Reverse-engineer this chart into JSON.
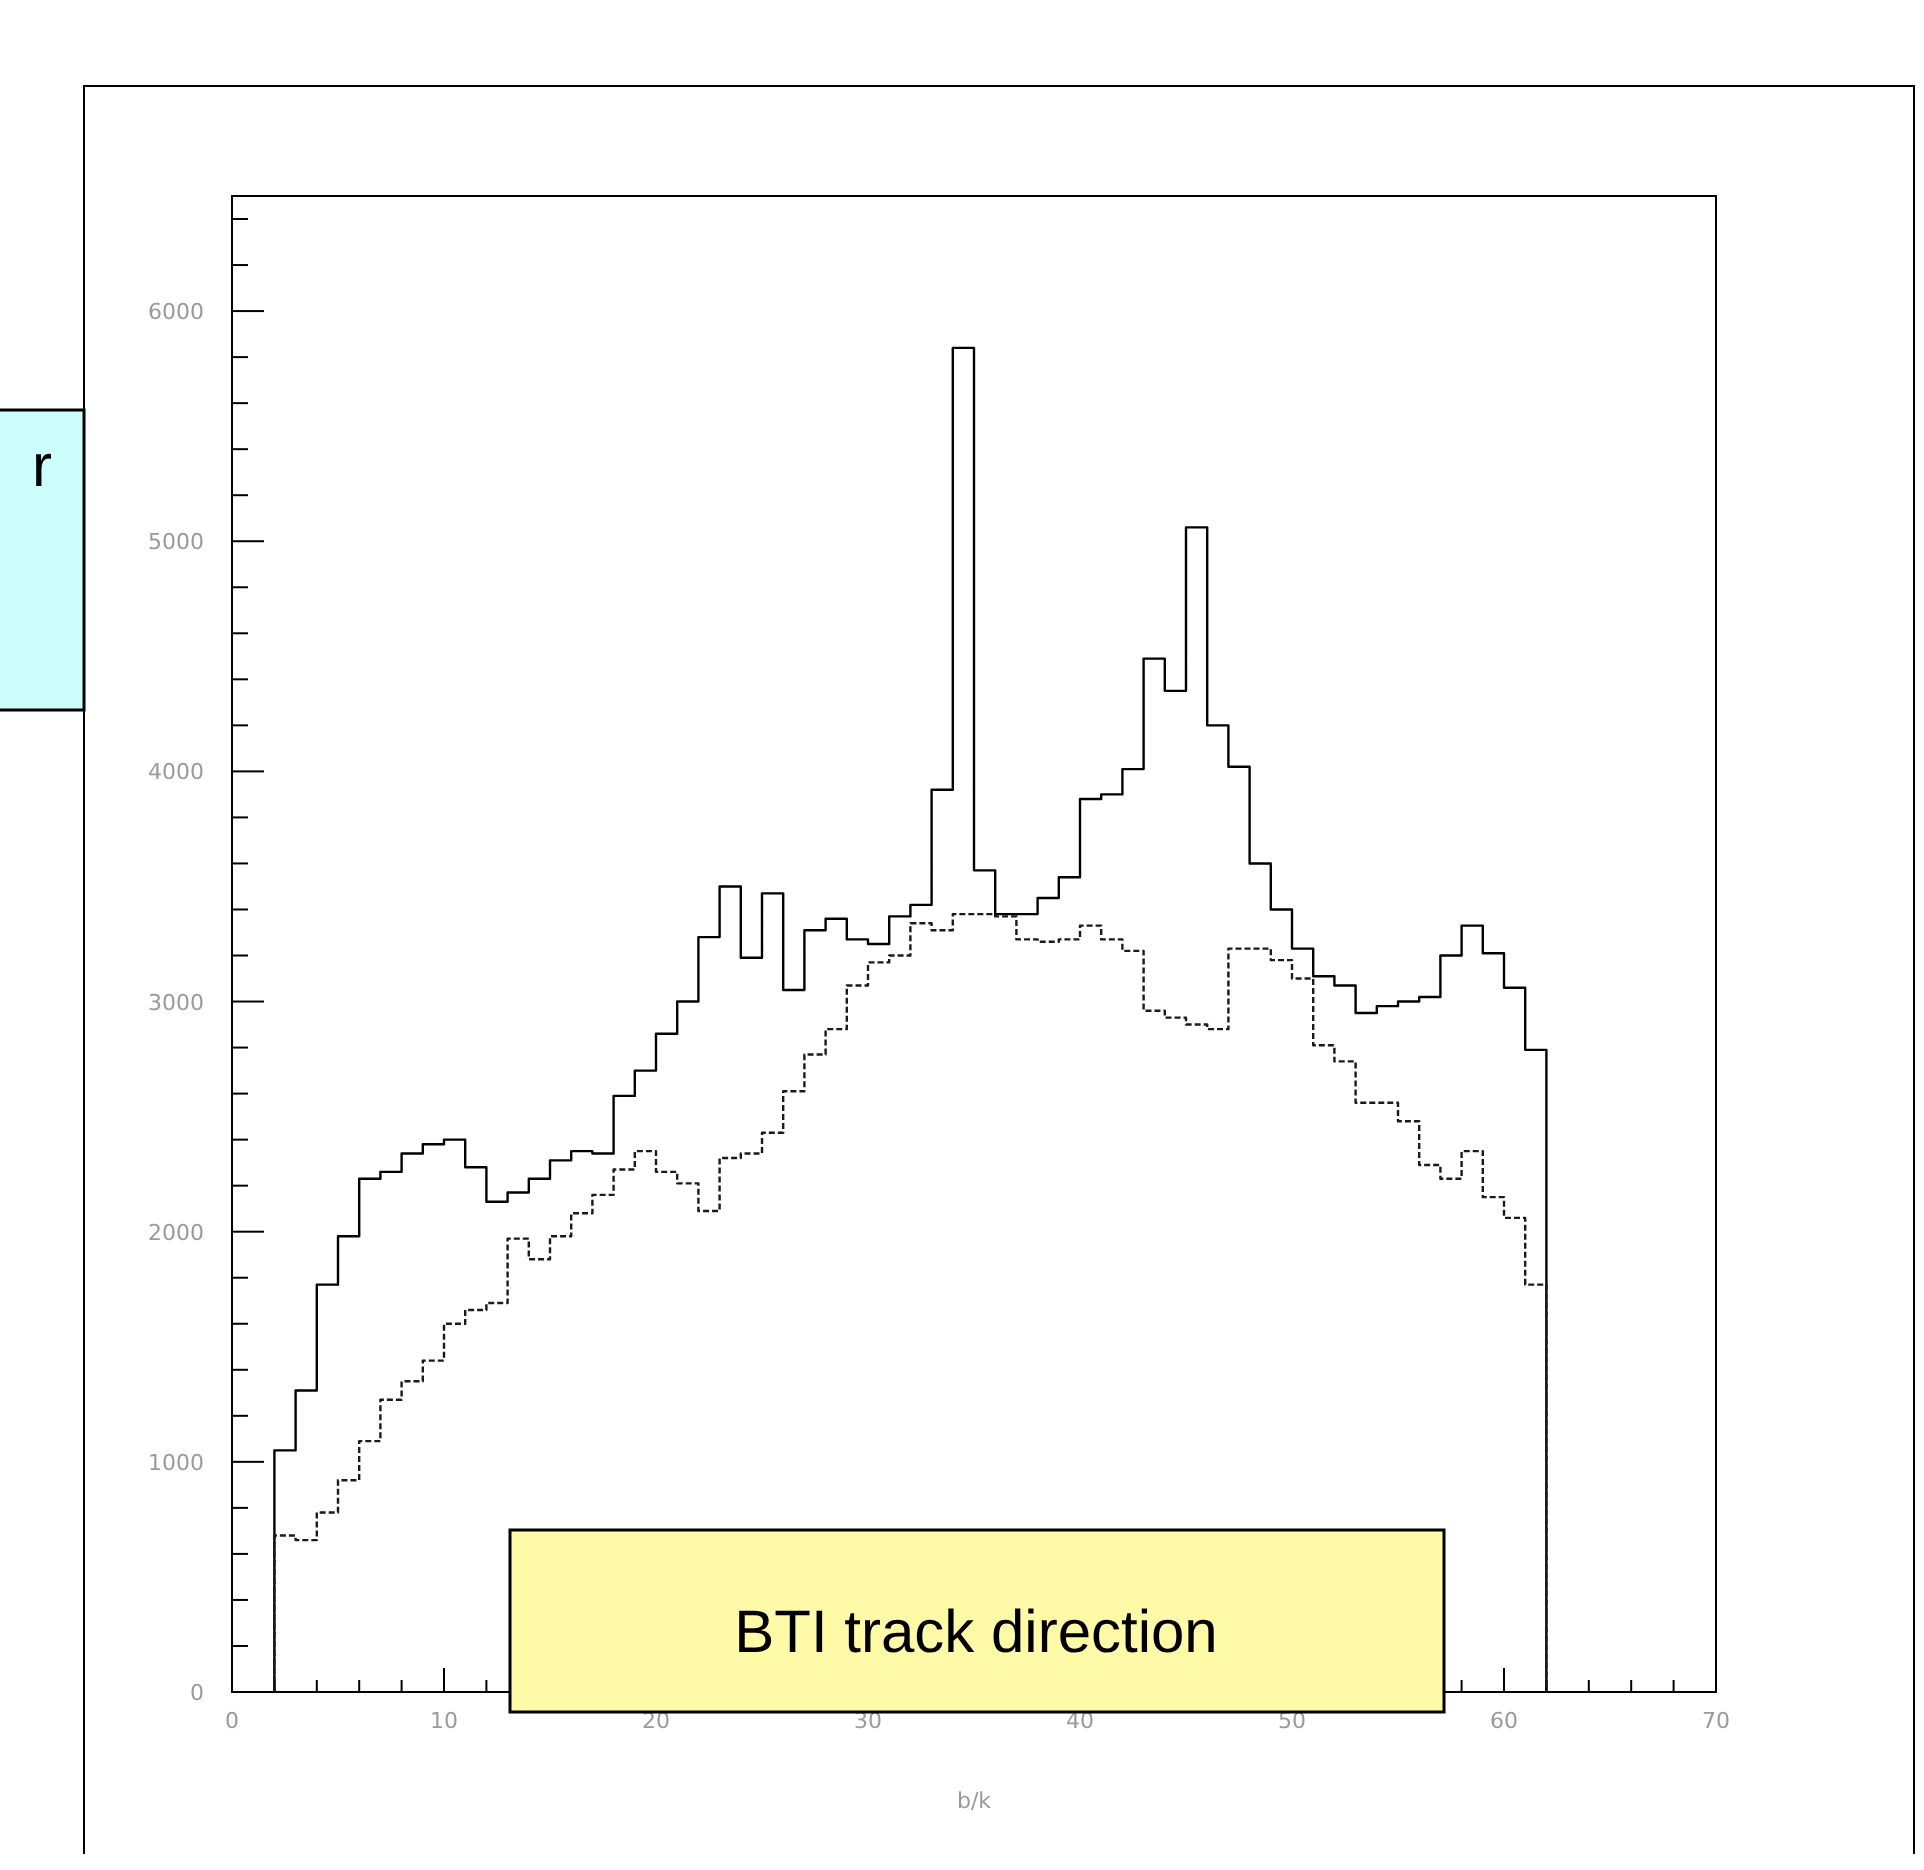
{
  "chart_data": {
    "type": "histogram",
    "xlabel": "b/k",
    "bins": [
      2,
      3,
      4,
      5,
      6,
      7,
      8,
      9,
      10,
      11,
      12,
      13,
      14,
      15,
      16,
      17,
      18,
      19,
      20,
      21,
      22,
      23,
      24,
      25,
      26,
      27,
      28,
      29,
      30,
      31,
      32,
      33,
      34,
      35,
      36,
      37,
      38,
      39,
      40,
      41,
      42,
      43,
      44,
      45,
      46,
      47,
      48,
      49,
      50,
      51,
      52,
      53,
      54,
      55,
      56,
      57,
      58,
      59,
      60,
      61,
      62
    ],
    "series": [
      {
        "color": "#000000",
        "line_style": "solid",
        "values": [
          1050,
          1310,
          1770,
          1980,
          2230,
          2260,
          2340,
          2380,
          2400,
          2280,
          2130,
          2170,
          2230,
          2310,
          2350,
          2340,
          2590,
          2700,
          2860,
          3000,
          3280,
          3500,
          3190,
          3470,
          3050,
          3310,
          3360,
          3270,
          3250,
          3370,
          3420,
          3920,
          5840,
          3570,
          3380,
          3380,
          3450,
          3540,
          3880,
          3900,
          4010,
          4490,
          4350,
          5060,
          4200,
          4020,
          3600,
          3400,
          3230,
          3110,
          3070,
          2950,
          2980,
          3000,
          3020,
          3200,
          3330,
          3210,
          3060,
          2790
        ]
      },
      {
        "color": "#1a1a1a",
        "line_style": "dashed",
        "values": [
          680,
          660,
          780,
          920,
          1090,
          1270,
          1350,
          1440,
          1600,
          1660,
          1690,
          1970,
          1880,
          1980,
          2080,
          2160,
          2270,
          2350,
          2260,
          2210,
          2090,
          2320,
          2340,
          2430,
          2610,
          2770,
          2880,
          3070,
          3170,
          3200,
          3340,
          3310,
          3380,
          3380,
          3370,
          3270,
          3260,
          3270,
          3330,
          3270,
          3220,
          2960,
          2930,
          2900,
          2880,
          3230,
          3230,
          3180,
          3100,
          2810,
          2740,
          2560,
          2560,
          2480,
          2290,
          2230,
          2350,
          2150,
          2060,
          1770
        ]
      }
    ],
    "xlim": [
      0,
      70
    ],
    "xticks": [
      0,
      {
        "value": 2,
        "label": null
      },
      {
        "value": 4,
        "label": null
      },
      {
        "value": 6,
        "label": null
      },
      {
        "value": 8,
        "label": null
      },
      10,
      {
        "value": 12,
        "label": null
      },
      {
        "value": 14,
        "label": null
      },
      {
        "value": 16,
        "label": null
      },
      {
        "value": 18,
        "label": null
      },
      20,
      {
        "value": 22,
        "label": null
      },
      {
        "value": 24,
        "label": null
      },
      {
        "value": 26,
        "label": null
      },
      {
        "value": 28,
        "label": null
      },
      30,
      {
        "value": 32,
        "label": null
      },
      {
        "value": 34,
        "label": null
      },
      {
        "value": 36,
        "label": null
      },
      {
        "value": 38,
        "label": null
      },
      40,
      {
        "value": 42,
        "label": null
      },
      {
        "value": 44,
        "label": null
      },
      {
        "value": 46,
        "label": null
      },
      {
        "value": 48,
        "label": null
      },
      50,
      {
        "value": 52,
        "label": null
      },
      {
        "value": 54,
        "label": null
      },
      {
        "value": 56,
        "label": null
      },
      {
        "value": 58,
        "label": null
      },
      60,
      {
        "value": 62,
        "label": null
      },
      {
        "value": 64,
        "label": null
      },
      {
        "value": 66,
        "label": null
      },
      {
        "value": 68,
        "label": null
      },
      70
    ],
    "ylim": [
      0,
      6500
    ],
    "yticks": [
      0,
      {
        "value": 200,
        "label": null
      },
      {
        "value": 400,
        "label": null
      },
      {
        "value": 600,
        "label": null
      },
      {
        "value": 800,
        "label": null
      },
      1000,
      {
        "value": 1200,
        "label": null
      },
      {
        "value": 1400,
        "label": null
      },
      {
        "value": 1600,
        "label": null
      },
      {
        "value": 1800,
        "label": null
      },
      2000,
      {
        "value": 2200,
        "label": null
      },
      {
        "value": 2400,
        "label": null
      },
      {
        "value": 2600,
        "label": null
      },
      {
        "value": 2800,
        "label": null
      },
      3000,
      {
        "value": 3200,
        "label": null
      },
      {
        "value": 3400,
        "label": null
      },
      {
        "value": 3600,
        "label": null
      },
      {
        "value": 3800,
        "label": null
      },
      4000,
      {
        "value": 4200,
        "label": null
      },
      {
        "value": 4400,
        "label": null
      },
      {
        "value": 4600,
        "label": null
      },
      {
        "value": 4800,
        "label": null
      },
      5000,
      {
        "value": 5200,
        "label": null
      },
      {
        "value": 5400,
        "label": null
      },
      {
        "value": 5600,
        "label": null
      },
      {
        "value": 5800,
        "label": null
      },
      6000,
      {
        "value": 6200,
        "label": null
      },
      {
        "value": 6400,
        "label": null
      }
    ],
    "annotations": [
      "BTI track direction",
      "r"
    ]
  }
}
